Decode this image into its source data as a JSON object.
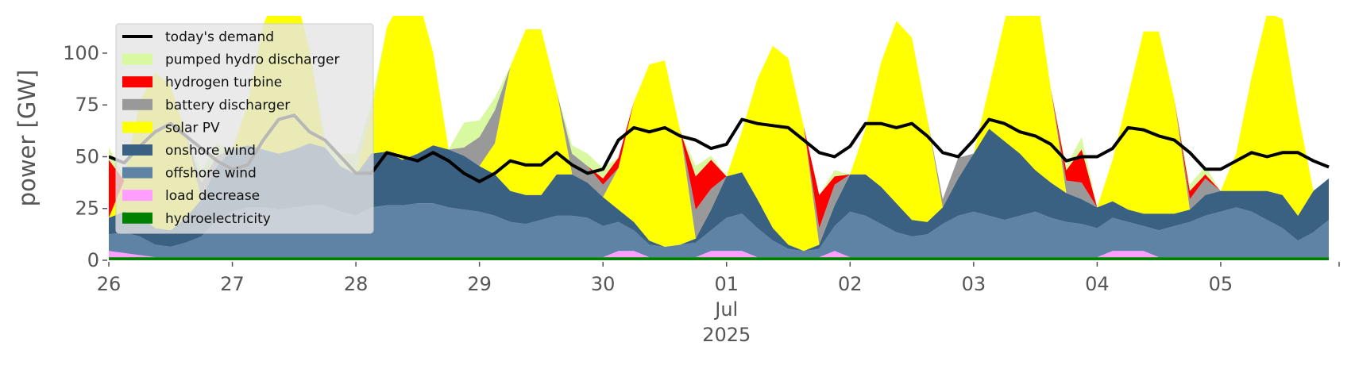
{
  "chart_data": {
    "type": "area",
    "ylabel": "power [GW]",
    "ylim": [
      0,
      118
    ],
    "yticks": [
      0,
      25,
      50,
      75,
      100
    ],
    "x_range": [
      "2025-06-26T00:00",
      "2025-07-05T23:00"
    ],
    "x_ticks": [
      {
        "date": "2025-06-26",
        "label": "26"
      },
      {
        "date": "2025-06-27",
        "label": "27"
      },
      {
        "date": "2025-06-28",
        "label": "28"
      },
      {
        "date": "2025-06-29",
        "label": "29"
      },
      {
        "date": "2025-06-30",
        "label": "30"
      },
      {
        "date": "2025-07-01",
        "label": "01"
      },
      {
        "date": "2025-07-02",
        "label": "02"
      },
      {
        "date": "2025-07-03",
        "label": "03"
      },
      {
        "date": "2025-07-04",
        "label": "04"
      },
      {
        "date": "2025-07-05",
        "label": "05"
      }
    ],
    "x_month_label": "Jul",
    "x_year_label": "2025",
    "grid": false,
    "legend_position": "top-left",
    "legend": [
      {
        "name": "today's demand",
        "color": "#000000",
        "kind": "line"
      },
      {
        "name": "pumped hydro discharger",
        "color": "#d8f9a0",
        "kind": "patch"
      },
      {
        "name": "hydrogen turbine",
        "color": "#ff0000",
        "kind": "patch"
      },
      {
        "name": "battery discharger",
        "color": "#999999",
        "kind": "patch"
      },
      {
        "name": "solar PV",
        "color": "#ffff00",
        "kind": "patch"
      },
      {
        "name": "onshore wind",
        "color": "#3b6182",
        "kind": "patch"
      },
      {
        "name": "offshore wind",
        "color": "#5f83a5",
        "kind": "patch"
      },
      {
        "name": "load decrease",
        "color": "#ff9eff",
        "kind": "patch"
      },
      {
        "name": "hydroelectricity",
        "color": "#008000",
        "kind": "patch"
      }
    ],
    "x": [
      "2025-06-26T00:00",
      "2025-06-26T03:00",
      "2025-06-26T06:00",
      "2025-06-26T09:00",
      "2025-06-26T12:00",
      "2025-06-26T15:00",
      "2025-06-26T18:00",
      "2025-06-26T21:00",
      "2025-06-27T00:00",
      "2025-06-27T03:00",
      "2025-06-27T06:00",
      "2025-06-27T09:00",
      "2025-06-27T12:00",
      "2025-06-27T15:00",
      "2025-06-27T18:00",
      "2025-06-27T21:00",
      "2025-06-28T00:00",
      "2025-06-28T03:00",
      "2025-06-28T06:00",
      "2025-06-28T09:00",
      "2025-06-28T12:00",
      "2025-06-28T15:00",
      "2025-06-28T18:00",
      "2025-06-28T21:00",
      "2025-06-29T00:00",
      "2025-06-29T03:00",
      "2025-06-29T06:00",
      "2025-06-29T09:00",
      "2025-06-29T12:00",
      "2025-06-29T15:00",
      "2025-06-29T18:00",
      "2025-06-29T21:00",
      "2025-06-30T00:00",
      "2025-06-30T03:00",
      "2025-06-30T06:00",
      "2025-06-30T09:00",
      "2025-06-30T12:00",
      "2025-06-30T15:00",
      "2025-06-30T18:00",
      "2025-06-30T21:00",
      "2025-07-01T00:00",
      "2025-07-01T03:00",
      "2025-07-01T06:00",
      "2025-07-01T09:00",
      "2025-07-01T12:00",
      "2025-07-01T15:00",
      "2025-07-01T18:00",
      "2025-07-01T21:00",
      "2025-07-02T00:00",
      "2025-07-02T03:00",
      "2025-07-02T06:00",
      "2025-07-02T09:00",
      "2025-07-02T12:00",
      "2025-07-02T15:00",
      "2025-07-02T18:00",
      "2025-07-02T21:00",
      "2025-07-03T00:00",
      "2025-07-03T03:00",
      "2025-07-03T06:00",
      "2025-07-03T09:00",
      "2025-07-03T12:00",
      "2025-07-03T15:00",
      "2025-07-03T18:00",
      "2025-07-03T21:00",
      "2025-07-04T00:00",
      "2025-07-04T03:00",
      "2025-07-04T06:00",
      "2025-07-04T09:00",
      "2025-07-04T12:00",
      "2025-07-04T15:00",
      "2025-07-04T18:00",
      "2025-07-04T21:00",
      "2025-07-05T00:00",
      "2025-07-05T03:00",
      "2025-07-05T06:00",
      "2025-07-05T09:00",
      "2025-07-05T12:00",
      "2025-07-05T15:00",
      "2025-07-05T18:00",
      "2025-07-05T21:00"
    ],
    "series": [
      {
        "name": "hydroelectricity",
        "color": "#008000",
        "values": [
          1.5,
          1.5,
          1.5,
          1.5,
          1.5,
          1.5,
          1.5,
          1.5,
          1.5,
          1.5,
          1.5,
          1.5,
          1.5,
          1.5,
          1.5,
          1.5,
          1.5,
          1.5,
          1.5,
          1.5,
          1.5,
          1.5,
          1.5,
          1.5,
          1.5,
          1.5,
          1.5,
          1.5,
          1.5,
          1.5,
          1.5,
          1.5,
          1.5,
          1.5,
          1.5,
          1.5,
          1.5,
          1.5,
          1.5,
          1.5,
          1.5,
          1.5,
          1.5,
          1.5,
          1.5,
          1.5,
          1.5,
          1.5,
          1.5,
          1.5,
          1.5,
          1.5,
          1.5,
          1.5,
          1.5,
          1.5,
          1.5,
          1.5,
          1.5,
          1.5,
          1.5,
          1.5,
          1.5,
          1.5,
          1.5,
          1.5,
          1.5,
          1.5,
          1.5,
          1.5,
          1.5,
          1.5,
          1.5,
          1.5,
          1.5,
          1.5,
          1.5,
          1.5,
          1.5,
          1.5
        ]
      },
      {
        "name": "load decrease",
        "color": "#ff9eff",
        "values": [
          3,
          2,
          1,
          0,
          0,
          0,
          0,
          0,
          0,
          0,
          0,
          0,
          0,
          0,
          0,
          0,
          0,
          0,
          0,
          0,
          0,
          0,
          0,
          0,
          0,
          0,
          0,
          0,
          0,
          0,
          0,
          0,
          0,
          3,
          3,
          0,
          0,
          0,
          0,
          3,
          3,
          3,
          0,
          0,
          0,
          0,
          0,
          3,
          0,
          0,
          0,
          0,
          0,
          0,
          0,
          0,
          0,
          0,
          0,
          0,
          0,
          0,
          0,
          0,
          0,
          3,
          3,
          3,
          0,
          0,
          0,
          0,
          0,
          0,
          0,
          0,
          0,
          0,
          0,
          0
        ]
      },
      {
        "name": "offshore wind",
        "color": "#5f83a5",
        "values": [
          8,
          10,
          9,
          6,
          5,
          7,
          10,
          18,
          22,
          24,
          24,
          23,
          24,
          25,
          25,
          22,
          20,
          24,
          25,
          25,
          26,
          26,
          24,
          23,
          22,
          20,
          17,
          16,
          18,
          20,
          20,
          19,
          15,
          14,
          10,
          6,
          5,
          6,
          7,
          10,
          16,
          18,
          14,
          8,
          4,
          3,
          4,
          12,
          22,
          20,
          16,
          12,
          10,
          11,
          16,
          20,
          22,
          20,
          18,
          20,
          22,
          19,
          17,
          16,
          14,
          16,
          14,
          12,
          13,
          15,
          17,
          20,
          22,
          24,
          22,
          18,
          14,
          8,
          12,
          18
        ]
      },
      {
        "name": "onshore wind",
        "color": "#3b6182",
        "values": [
          8,
          10,
          10,
          8,
          8,
          12,
          18,
          26,
          30,
          30,
          28,
          27,
          28,
          30,
          28,
          22,
          20,
          26,
          26,
          22,
          24,
          28,
          28,
          26,
          22,
          20,
          15,
          14,
          12,
          20,
          20,
          17,
          14,
          6,
          4,
          2,
          0,
          0,
          2,
          10,
          20,
          20,
          14,
          6,
          2,
          0,
          2,
          10,
          18,
          20,
          18,
          14,
          8,
          6,
          8,
          18,
          28,
          42,
          38,
          30,
          20,
          17,
          14,
          12,
          10,
          8,
          6,
          6,
          8,
          6,
          6,
          10,
          10,
          8,
          10,
          14,
          16,
          12,
          20,
          20
        ]
      },
      {
        "name": "solar PV",
        "color": "#ffff00",
        "values": [
          0,
          15,
          55,
          75,
          70,
          40,
          0,
          0,
          0,
          20,
          60,
          80,
          78,
          45,
          0,
          0,
          0,
          20,
          60,
          78,
          76,
          45,
          0,
          0,
          0,
          15,
          60,
          80,
          80,
          40,
          0,
          0,
          0,
          20,
          58,
          85,
          90,
          55,
          0,
          0,
          0,
          20,
          58,
          88,
          90,
          60,
          0,
          0,
          0,
          22,
          60,
          88,
          88,
          50,
          0,
          0,
          0,
          20,
          58,
          88,
          90,
          45,
          0,
          0,
          0,
          20,
          55,
          88,
          88,
          55,
          0,
          0,
          0,
          18,
          55,
          86,
          85,
          50,
          0,
          0
        ]
      },
      {
        "name": "battery discharger",
        "color": "#999999",
        "values": [
          0,
          0,
          0,
          0,
          0,
          0,
          8,
          5,
          0,
          0,
          0,
          0,
          0,
          0,
          0,
          0,
          0,
          0,
          0,
          0,
          0,
          0,
          0,
          4,
          14,
          16,
          0,
          0,
          0,
          0,
          10,
          8,
          6,
          0,
          0,
          0,
          0,
          0,
          14,
          10,
          0,
          0,
          0,
          0,
          0,
          0,
          8,
          10,
          0,
          0,
          0,
          0,
          0,
          0,
          4,
          10,
          0,
          0,
          0,
          0,
          0,
          0,
          6,
          8,
          0,
          0,
          0,
          0,
          0,
          0,
          5,
          8,
          0,
          0,
          0,
          0,
          0,
          0,
          0,
          0
        ]
      },
      {
        "name": "hydrogen turbine",
        "color": "#ff0000",
        "values": [
          28,
          0,
          0,
          0,
          0,
          0,
          0,
          0,
          0,
          0,
          0,
          0,
          0,
          0,
          0,
          0,
          0,
          0,
          0,
          0,
          0,
          0,
          0,
          0,
          0,
          0,
          0,
          0,
          0,
          0,
          0,
          0,
          3,
          5,
          0,
          0,
          0,
          0,
          16,
          14,
          0,
          0,
          0,
          0,
          0,
          0,
          16,
          4,
          0,
          0,
          0,
          0,
          0,
          0,
          0,
          0,
          0,
          0,
          0,
          0,
          0,
          0,
          5,
          16,
          0,
          0,
          0,
          0,
          0,
          0,
          4,
          2,
          0,
          0,
          0,
          0,
          0,
          0,
          0,
          0
        ]
      },
      {
        "name": "pumped hydro discharger",
        "color": "#d8f9a0",
        "values": [
          6,
          2,
          0,
          0,
          0,
          0,
          5,
          6,
          0,
          0,
          0,
          0,
          0,
          0,
          4,
          6,
          10,
          4,
          0,
          0,
          0,
          0,
          0,
          12,
          8,
          6,
          0,
          0,
          0,
          0,
          4,
          6,
          5,
          0,
          0,
          0,
          0,
          0,
          5,
          2,
          0,
          0,
          0,
          0,
          0,
          0,
          0,
          3,
          0,
          0,
          0,
          0,
          0,
          0,
          0,
          0,
          0,
          0,
          0,
          0,
          0,
          0,
          2,
          6,
          0,
          0,
          0,
          0,
          0,
          0,
          3,
          4,
          0,
          0,
          0,
          0,
          0,
          0,
          0,
          0
        ]
      },
      {
        "name": "today's demand",
        "color": "#000000",
        "kind": "line",
        "values": [
          50,
          47,
          55,
          62,
          66,
          60,
          54,
          48,
          44,
          46,
          58,
          68,
          70,
          62,
          58,
          50,
          42,
          42,
          52,
          50,
          48,
          52,
          48,
          42,
          38,
          42,
          48,
          46,
          46,
          52,
          46,
          42,
          44,
          58,
          64,
          62,
          64,
          60,
          58,
          54,
          56,
          68,
          66,
          65,
          64,
          58,
          52,
          50,
          55,
          66,
          66,
          64,
          66,
          60,
          52,
          50,
          58,
          68,
          66,
          62,
          60,
          56,
          48,
          50,
          50,
          54,
          64,
          63,
          60,
          58,
          52,
          44,
          44,
          48,
          52,
          50,
          52,
          52,
          48,
          45
        ]
      }
    ]
  }
}
